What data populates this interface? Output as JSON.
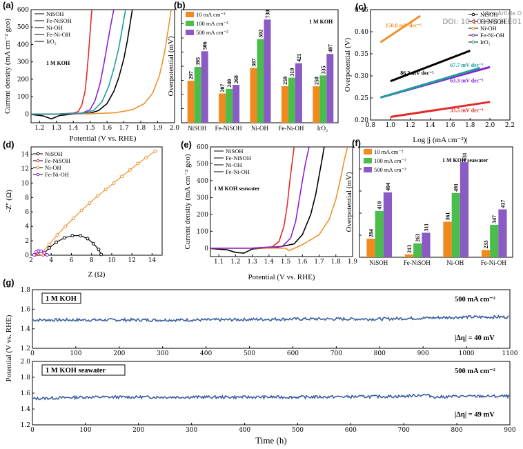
{
  "watermark": {
    "view_article": "View Article O",
    "doi": "DOI: 10.1039/D2EE01"
  },
  "colors": {
    "NiSOH": "#000000",
    "Fe-NiSOH": "#e32a2a",
    "Ni-OH": "#f0912b",
    "Fe-Ni-OH": "#8b1fd6",
    "IrO2": "#1e9c9c",
    "bar10": "#f0891e",
    "bar100": "#4bbd4b",
    "bar500": "#8a5bc4",
    "stab": "#3a5f9e"
  },
  "chart_data": [
    {
      "panel": "(a)",
      "type": "line",
      "xlabel": "Potential (V vs. RHE)",
      "ylabel": "Current density (mA cm⁻² geo)",
      "xlim": [
        1.15,
        2.0
      ],
      "ylim": [
        -50,
        600
      ],
      "xticks": [
        1.2,
        1.3,
        1.4,
        1.5,
        1.6,
        1.7,
        1.8,
        1.9,
        2.0
      ],
      "xtick_labels": [
        "1.2",
        "1.3",
        "1.4",
        "1.5",
        "1.6",
        "1.7",
        "1.8",
        "1.9",
        "2.0"
      ],
      "yticks": [
        0,
        100,
        200,
        300,
        400,
        500,
        600
      ],
      "ytick_labels": [
        "0",
        "100",
        "200",
        "300",
        "400",
        "500",
        "600"
      ],
      "annotation": "1 M KOH",
      "series": [
        {
          "name": "NiSOH",
          "color": "#000000",
          "x": [
            1.15,
            1.22,
            1.27,
            1.32,
            1.4,
            1.5,
            1.55,
            1.6,
            1.64,
            1.67,
            1.7,
            1.72,
            1.74,
            1.75
          ],
          "y": [
            -2,
            -10,
            -28,
            -8,
            0,
            5,
            20,
            60,
            130,
            210,
            320,
            420,
            540,
            600
          ]
        },
        {
          "name": "Fe-NiSOH",
          "color": "#e32a2a",
          "x": [
            1.15,
            1.3,
            1.4,
            1.43,
            1.45,
            1.47,
            1.48,
            1.49,
            1.5,
            1.51
          ],
          "y": [
            0,
            0,
            5,
            15,
            50,
            130,
            230,
            340,
            470,
            600
          ]
        },
        {
          "name": "Ni-OH",
          "color": "#f0912b",
          "x": [
            1.15,
            1.3,
            1.5,
            1.65,
            1.75,
            1.82,
            1.87,
            1.91,
            1.94,
            1.96,
            1.98
          ],
          "y": [
            0,
            0,
            2,
            8,
            25,
            60,
            120,
            220,
            350,
            470,
            600
          ]
        },
        {
          "name": "Fe-Ni-OH",
          "color": "#8b1fd6",
          "x": [
            1.15,
            1.3,
            1.45,
            1.5,
            1.53,
            1.56,
            1.58,
            1.6,
            1.62,
            1.64
          ],
          "y": [
            0,
            0,
            5,
            25,
            80,
            180,
            280,
            390,
            500,
            600
          ]
        },
        {
          "name": "IrO2",
          "color": "#1e9c9c",
          "x": [
            1.15,
            1.3,
            1.45,
            1.52,
            1.57,
            1.61,
            1.64,
            1.67,
            1.69,
            1.71
          ],
          "y": [
            0,
            0,
            4,
            20,
            70,
            160,
            260,
            380,
            490,
            600
          ]
        }
      ],
      "legend": [
        "NiSOH",
        "Fe-NiSOH",
        "Ni-OH",
        "Fe-Ni-OH",
        "IrO₂"
      ]
    },
    {
      "panel": "(b)",
      "type": "bar",
      "ylabel": "Overpotential (mV)",
      "ylim": [
        0,
        800
      ],
      "annotation": "1 M KOH",
      "categories": [
        "NiSOH",
        "Fe-NiSOH",
        "Ni-OH",
        "Fe-Ni-OH",
        "IrO₂"
      ],
      "series": [
        {
          "name": "10 mA cm⁻²",
          "color": "#f0891e",
          "values": [
            297,
            207,
            387,
            259,
            258
          ]
        },
        {
          "name": "100 mA cm⁻²",
          "color": "#4bbd4b",
          "values": [
            395,
            240,
            592,
            319,
            335
          ]
        },
        {
          "name": "500 mA cm⁻²",
          "color": "#8a5bc4",
          "values": [
            506,
            268,
            730,
            421,
            487
          ]
        }
      ]
    },
    {
      "panel": "(c)",
      "type": "line",
      "xlabel": "Log |j (mA cm⁻²)|",
      "ylabel": "Overpotential (V)",
      "xlim": [
        0.8,
        2.2
      ],
      "ylim": [
        0.2,
        0.45
      ],
      "xticks": [
        0.8,
        1.0,
        1.2,
        1.4,
        1.6,
        1.8,
        2.0,
        2.2
      ],
      "xtick_labels": [
        "0.8",
        "1.0",
        "1.2",
        "1.4",
        "1.6",
        "1.8",
        "2.0",
        "2.2"
      ],
      "yticks": [
        0.2,
        0.25,
        0.3,
        0.35,
        0.4,
        0.45
      ],
      "ytick_labels": [
        "0.20",
        "0.25",
        "0.30",
        "0.35",
        "0.40",
        "0.45"
      ],
      "series": [
        {
          "name": "NiSOH",
          "color": "#000000",
          "x": [
            1.0,
            1.8
          ],
          "y": [
            0.288,
            0.357
          ],
          "label": "86.2 mV dec⁻¹"
        },
        {
          "name": "Fe-NiSOH",
          "color": "#e32a2a",
          "x": [
            1.0,
            2.0
          ],
          "y": [
            0.207,
            0.241
          ],
          "label": "33.5 mV dec⁻¹"
        },
        {
          "name": "Ni-OH",
          "color": "#f0912b",
          "x": [
            0.9,
            1.3
          ],
          "y": [
            0.376,
            0.436
          ],
          "label": "150.8 mV dec⁻¹"
        },
        {
          "name": "Fe-Ni-OH",
          "color": "#8b1fd6",
          "x": [
            0.9,
            2.0
          ],
          "y": [
            0.251,
            0.32
          ],
          "label": "63.3 mV dec⁻¹"
        },
        {
          "name": "IrO2",
          "color": "#1e9c9c",
          "x": [
            0.9,
            1.9
          ],
          "y": [
            0.251,
            0.318
          ],
          "label": "67.7 mV dec⁻¹"
        }
      ],
      "legend": [
        "NiSOH",
        "Fe-NiSOH",
        "Ni-OH",
        "Fe-Ni-OH",
        "IrO₂"
      ]
    },
    {
      "panel": "(d)",
      "type": "scatter",
      "xlabel": "Z (Ω)",
      "ylabel": "-Z'' (Ω)",
      "xlim": [
        2,
        15
      ],
      "ylim": [
        0,
        15
      ],
      "xticks": [
        2,
        4,
        6,
        8,
        10,
        12,
        14
      ],
      "xtick_labels": [
        "2",
        "4",
        "6",
        "8",
        "10",
        "12",
        "14"
      ],
      "yticks": [
        0,
        2,
        4,
        6,
        8,
        10,
        12,
        14
      ],
      "ytick_labels": [
        "0",
        "2",
        "4",
        "6",
        "8",
        "10",
        "12",
        "14"
      ],
      "series": [
        {
          "name": "NiSOH",
          "color": "#000000",
          "x": [
            3.2,
            3.8,
            4.5,
            5.3,
            6.1,
            6.9,
            7.6,
            8.2,
            8.7,
            8.95
          ],
          "y": [
            0.1,
            1.0,
            1.8,
            2.4,
            2.7,
            2.7,
            2.3,
            1.6,
            0.8,
            0.1
          ]
        },
        {
          "name": "Fe-NiSOH",
          "color": "#e32a2a",
          "x": [
            2.4,
            2.6,
            2.8,
            3.0,
            3.2
          ],
          "y": [
            0.05,
            0.35,
            0.45,
            0.3,
            0.05
          ]
        },
        {
          "name": "Ni-OH",
          "color": "#f0912b",
          "x": [
            3.0,
            3.8,
            4.6,
            5.4,
            6.2,
            7.0,
            7.8,
            8.6,
            9.4,
            10.2,
            11.0,
            11.8,
            12.6,
            13.4,
            14.3
          ],
          "y": [
            0.2,
            1.5,
            2.8,
            4.0,
            5.1,
            6.2,
            7.2,
            8.2,
            9.1,
            10.0,
            10.9,
            11.8,
            12.7,
            13.5,
            14.4
          ]
        },
        {
          "name": "Fe-Ni-OH",
          "color": "#8b1fd6",
          "x": [
            2.3,
            2.5,
            2.75,
            3.0,
            3.3,
            3.6
          ],
          "y": [
            0.05,
            0.45,
            0.6,
            0.55,
            0.35,
            0.05
          ]
        }
      ],
      "legend": [
        "NiSOH",
        "Fe-NiSOH",
        "Ni-OH",
        "Fe-Ni-OH"
      ]
    },
    {
      "panel": "(e)",
      "type": "line",
      "xlabel": "Potential (V vs. RHE)",
      "ylabel": "Current density (mA cm⁻² geo)",
      "xlim": [
        1.05,
        1.9
      ],
      "ylim": [
        -50,
        600
      ],
      "xticks": [
        1.1,
        1.2,
        1.3,
        1.4,
        1.5,
        1.6,
        1.7,
        1.8,
        1.9
      ],
      "xtick_labels": [
        "1.1",
        "1.2",
        "1.3",
        "1.4",
        "1.5",
        "1.6",
        "1.7",
        "1.8",
        "1.9"
      ],
      "yticks": [
        0,
        100,
        200,
        300,
        400,
        500,
        600
      ],
      "ytick_labels": [
        "0",
        "100",
        "200",
        "300",
        "400",
        "500",
        "600"
      ],
      "annotation": "1 M KOH seawater",
      "series": [
        {
          "name": "NiSOH",
          "color": "#000000",
          "x": [
            1.05,
            1.15,
            1.2,
            1.25,
            1.3,
            1.45,
            1.55,
            1.6,
            1.65,
            1.68,
            1.7,
            1.72,
            1.73
          ],
          "y": [
            -2,
            -10,
            -25,
            -30,
            -5,
            5,
            25,
            80,
            200,
            320,
            430,
            540,
            600
          ]
        },
        {
          "name": "Fe-NiSOH",
          "color": "#e32a2a",
          "x": [
            1.05,
            1.3,
            1.42,
            1.46,
            1.49,
            1.51,
            1.525,
            1.54,
            1.55
          ],
          "y": [
            0,
            0,
            8,
            40,
            130,
            260,
            400,
            520,
            600
          ]
        },
        {
          "name": "Ni-OH",
          "color": "#f0912b",
          "x": [
            1.05,
            1.35,
            1.5,
            1.52,
            1.6,
            1.7,
            1.76,
            1.8,
            1.83,
            1.85,
            1.87
          ],
          "y": [
            0,
            0,
            0,
            -15,
            20,
            80,
            170,
            290,
            420,
            520,
            600
          ]
        },
        {
          "name": "Fe-Ni-OH",
          "color": "#8b1fd6",
          "x": [
            1.05,
            1.3,
            1.48,
            1.53,
            1.56,
            1.58,
            1.6,
            1.62,
            1.64
          ],
          "y": [
            0,
            0,
            10,
            60,
            160,
            280,
            400,
            510,
            600
          ]
        }
      ],
      "legend": [
        "NiSOH",
        "Fe-NiSOH",
        "Ni-OH",
        "Fe-Ni-OH"
      ]
    },
    {
      "panel": "(f)",
      "type": "bar",
      "ylabel": "Overpotential (mV)",
      "ylim": [
        200,
        700
      ],
      "annotation": "1 M KOH seawater",
      "categories": [
        "NiSOH",
        "Fe-NiSOH",
        "Ni-OH",
        "Fe-Ni-OH"
      ],
      "series": [
        {
          "name": "10 mA cm⁻²",
          "color": "#f0891e",
          "values": [
            284,
            213,
            361,
            233
          ]
        },
        {
          "name": "100 mA cm⁻²",
          "color": "#4bbd4b",
          "values": [
            410,
            263,
            491,
            347
          ]
        },
        {
          "name": "500 mA cm⁻²",
          "color": "#8a5bc4",
          "values": [
            494,
            311,
            631,
            417
          ]
        }
      ]
    },
    {
      "panel": "(g)",
      "type": "line",
      "xlabel": "",
      "ylabel": "",
      "xlim": [
        0,
        1100
      ],
      "ylim": [
        1.2,
        1.8
      ],
      "xticks": [
        0,
        100,
        200,
        300,
        400,
        500,
        600,
        700,
        800,
        900,
        1000,
        1100
      ],
      "xtick_labels": [
        "0",
        "100",
        "200",
        "300",
        "400",
        "500",
        "600",
        "700",
        "800",
        "900",
        "1000",
        "1100"
      ],
      "yticks": [
        1.2,
        1.4,
        1.6,
        1.8
      ],
      "ytick_labels": [
        "1.2",
        "1.4",
        "1.6",
        "1.8"
      ],
      "annotation": "1 M KOH",
      "current": "500 mA cm⁻²",
      "delta": "|Δη| = 40 mV",
      "series": [
        {
          "name": "Potential",
          "color": "#3a5f9e",
          "x": [
            0,
            200,
            400,
            600,
            800,
            1000,
            1100
          ],
          "y": [
            1.49,
            1.49,
            1.49,
            1.5,
            1.5,
            1.52,
            1.52
          ]
        }
      ]
    },
    {
      "panel": "(g-2)",
      "type": "line",
      "xlabel": "Time (h)",
      "ylabel": "Potential (V vs. RHE)",
      "xlim": [
        0,
        900
      ],
      "ylim": [
        1.2,
        2.0
      ],
      "xticks": [
        0,
        100,
        200,
        300,
        400,
        500,
        600,
        700,
        800,
        900
      ],
      "xtick_labels": [
        "0",
        "100",
        "200",
        "300",
        "400",
        "500",
        "600",
        "700",
        "800",
        "900"
      ],
      "yticks": [
        1.2,
        1.4,
        1.6,
        1.8,
        2.0
      ],
      "ytick_labels": [
        "1.2",
        "1.4",
        "1.6",
        "1.8",
        "2.0"
      ],
      "annotation": "1 M KOH seawater",
      "current": "500 mA cm⁻²",
      "delta": "|Δη| = 49 mV",
      "series": [
        {
          "name": "Potential",
          "color": "#3a5f9e",
          "x": [
            0,
            100,
            300,
            500,
            700,
            740,
            760,
            800,
            900
          ],
          "y": [
            1.53,
            1.55,
            1.55,
            1.55,
            1.56,
            1.58,
            1.55,
            1.56,
            1.56
          ]
        }
      ]
    }
  ]
}
